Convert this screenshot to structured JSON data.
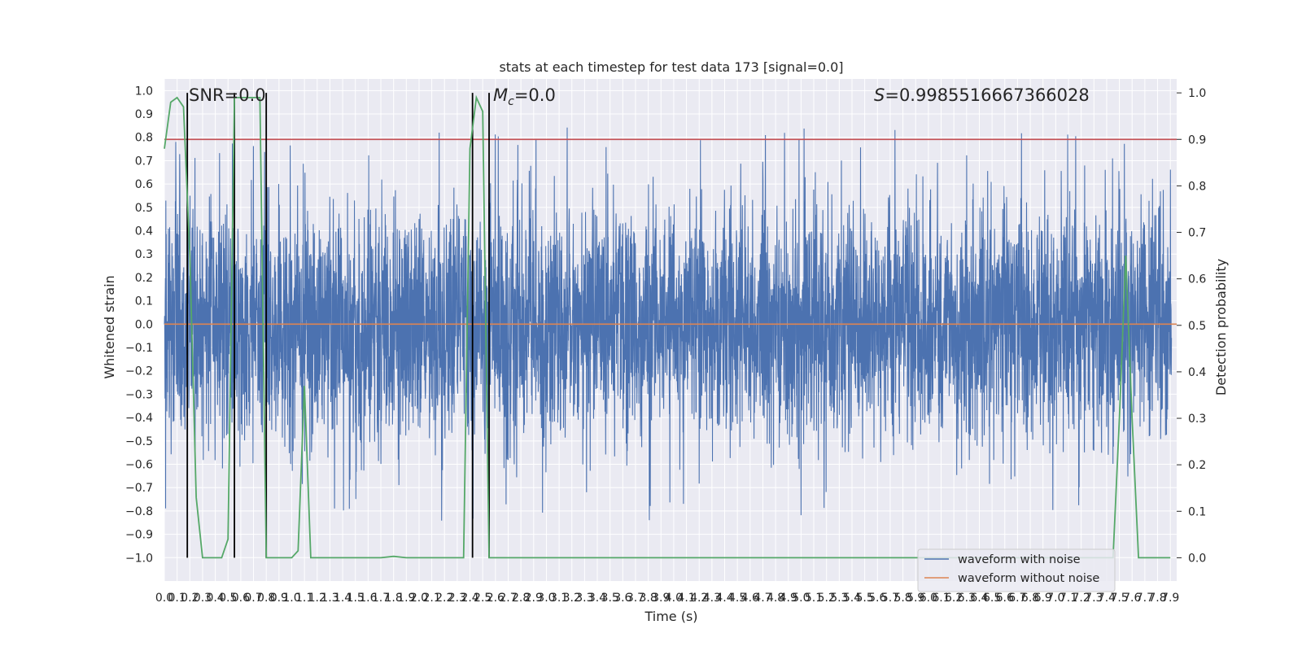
{
  "chart_data": {
    "type": "line",
    "title": "stats at each timestep for test data 173 [signal=0.0]",
    "xlabel": "Time (s)",
    "ylabel": "Whitened strain",
    "y2label": "Detection probability",
    "xlim": [
      0.0,
      7.95
    ],
    "ylim": [
      -1.1,
      1.05
    ],
    "y2lim": [
      -0.05,
      1.03
    ],
    "x_ticks": [
      "0.0",
      "0.1",
      "0.2",
      "0.3",
      "0.4",
      "0.5",
      "0.6",
      "0.7",
      "0.8",
      "0.9",
      "1.0",
      "1.1",
      "1.2",
      "1.3",
      "1.4",
      "1.5",
      "1.6",
      "1.7",
      "1.8",
      "1.9",
      "2.0",
      "2.1",
      "2.2",
      "2.3",
      "2.4",
      "2.5",
      "2.6",
      "2.7",
      "2.8",
      "2.9",
      "3.0",
      "3.1",
      "3.2",
      "3.3",
      "3.4",
      "3.5",
      "3.6",
      "3.7",
      "3.8",
      "3.9",
      "4.0",
      "4.1",
      "4.2",
      "4.3",
      "4.4",
      "4.5",
      "4.6",
      "4.7",
      "4.8",
      "4.9",
      "5.0",
      "5.1",
      "5.2",
      "5.3",
      "5.4",
      "5.5",
      "5.6",
      "5.7",
      "5.8",
      "5.9",
      "6.0",
      "6.1",
      "6.2",
      "6.3",
      "6.4",
      "6.5",
      "6.6",
      "6.7",
      "6.8",
      "6.9",
      "7.0",
      "7.1",
      "7.2",
      "7.3",
      "7.4",
      "7.5",
      "7.6",
      "7.7",
      "7.8",
      "7.9"
    ],
    "y_ticks": [
      "1.0",
      "0.9",
      "0.8",
      "0.7",
      "0.6",
      "0.5",
      "0.4",
      "0.3",
      "0.2",
      "0.1",
      "0.0",
      "−0.1",
      "−0.2",
      "−0.3",
      "−0.4",
      "−0.5",
      "−0.6",
      "−0.7",
      "−0.8",
      "−0.9",
      "−1.0"
    ],
    "y2_ticks": [
      "1.0",
      "0.9",
      "0.8",
      "0.7",
      "0.6",
      "0.5",
      "0.4",
      "0.3",
      "0.2",
      "0.1",
      "0.0"
    ],
    "grid": true,
    "legend_position": "bottom-right",
    "series": [
      {
        "name": "waveform with noise",
        "color": "#4c72b0",
        "axis": "left",
        "kind": "noise",
        "envelope": [
          -0.45,
          0.45
        ],
        "max": 0.93,
        "min": -0.98
      },
      {
        "name": "waveform without noise",
        "color": "#dd8452",
        "axis": "left",
        "value": 0.0
      },
      {
        "name": "",
        "color": "#55a868",
        "axis": "right",
        "x": [
          0.0,
          0.05,
          0.1,
          0.15,
          0.2,
          0.25,
          0.3,
          0.35,
          0.4,
          0.45,
          0.5,
          0.55,
          0.6,
          0.65,
          0.7,
          0.75,
          0.8,
          0.85,
          0.9,
          0.95,
          1.0,
          1.05,
          1.1,
          1.15,
          1.2,
          1.25,
          1.3,
          1.4,
          1.5,
          1.6,
          1.7,
          1.8,
          1.9,
          2.0,
          2.1,
          2.2,
          2.3,
          2.35,
          2.4,
          2.45,
          2.5,
          2.55,
          2.6,
          2.7,
          3.0,
          4.0,
          5.0,
          6.0,
          7.0,
          7.3,
          7.4,
          7.45,
          7.5,
          7.55,
          7.6,
          7.65,
          7.7,
          7.8,
          7.9
        ],
        "y": [
          0.88,
          0.98,
          0.99,
          0.97,
          0.65,
          0.13,
          0.0,
          0.0,
          0.0,
          0.0,
          0.04,
          0.99,
          0.99,
          0.99,
          0.99,
          0.99,
          0.0,
          0.0,
          0.0,
          0.0,
          0.0,
          0.015,
          0.37,
          0.0,
          0.0,
          0.0,
          0.0,
          0.0,
          0.0,
          0.0,
          0.0,
          0.003,
          0.0,
          0.0,
          0.0,
          0.0,
          0.0,
          0.0,
          0.88,
          0.99,
          0.96,
          0.0,
          0.0,
          0.0,
          0.0,
          0.0,
          0.0,
          0.0,
          0.0,
          0.0,
          0.0,
          0.0,
          0.3,
          0.65,
          0.3,
          0.0,
          0.0,
          0.0,
          0.0
        ]
      }
    ],
    "hlines": [
      {
        "y2": 0.9,
        "color": "#c44e52"
      }
    ],
    "vlines": [
      0.18,
      0.55,
      0.8,
      2.42,
      2.55
    ],
    "annotations": {
      "snr": "SNR=0.0",
      "mc_symbol": "M",
      "mc_sub": "c",
      "mc_value": "=0.0",
      "s_symbol": "S",
      "s_value": "=0.9985516667366028"
    }
  }
}
